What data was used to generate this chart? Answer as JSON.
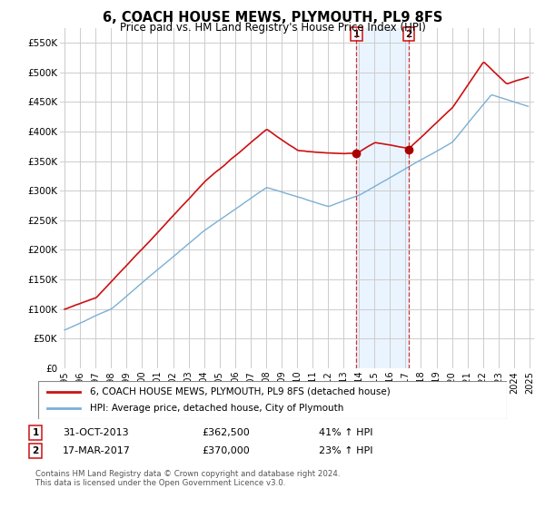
{
  "title": "6, COACH HOUSE MEWS, PLYMOUTH, PL9 8FS",
  "subtitle": "Price paid vs. HM Land Registry's House Price Index (HPI)",
  "legend_line1": "6, COACH HOUSE MEWS, PLYMOUTH, PL9 8FS (detached house)",
  "legend_line2": "HPI: Average price, detached house, City of Plymouth",
  "footnote": "Contains HM Land Registry data © Crown copyright and database right 2024.\nThis data is licensed under the Open Government Licence v3.0.",
  "transactions": [
    {
      "label": "1",
      "date": "31-OCT-2013",
      "price": 362500,
      "hpi_pct": "41% ↑ HPI",
      "x": 2013.83
    },
    {
      "label": "2",
      "date": "17-MAR-2017",
      "price": 370000,
      "hpi_pct": "23% ↑ HPI",
      "x": 2017.21
    }
  ],
  "hpi_color": "#7bafd4",
  "price_color": "#cc1111",
  "marker_color": "#aa0000",
  "dashed_line_color": "#cc1111",
  "shade_color": "#ddeeff",
  "ylim": [
    0,
    575000
  ],
  "yticks": [
    0,
    50000,
    100000,
    150000,
    200000,
    250000,
    300000,
    350000,
    400000,
    450000,
    500000,
    550000
  ],
  "ytick_labels": [
    "£0",
    "£50K",
    "£100K",
    "£150K",
    "£200K",
    "£250K",
    "£300K",
    "£350K",
    "£400K",
    "£450K",
    "£500K",
    "£550K"
  ],
  "xlim_start": 1994.7,
  "xlim_end": 2025.3,
  "background_color": "#ffffff",
  "grid_color": "#cccccc"
}
